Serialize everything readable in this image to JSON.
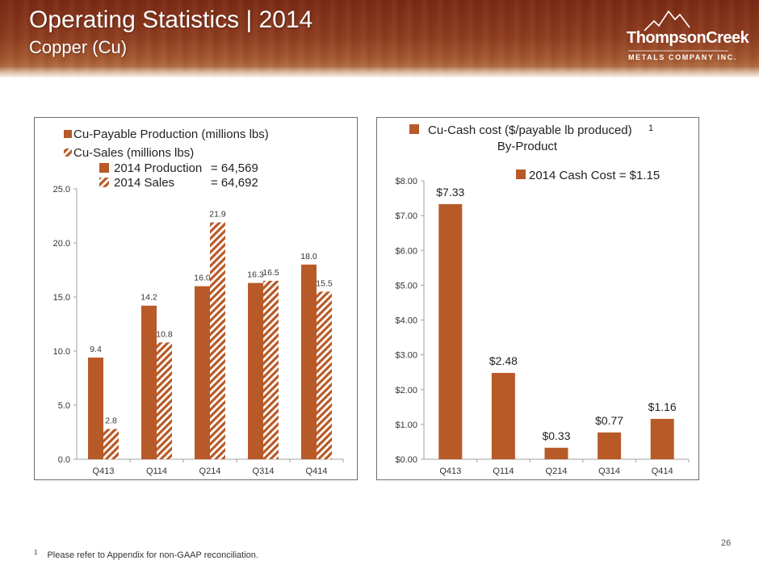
{
  "header": {
    "title": "Operating Statistics | 2014",
    "subtitle": "Copper (Cu)"
  },
  "logo": {
    "name": "ThompsonCreek",
    "tagline": "METALS COMPANY INC."
  },
  "colors": {
    "bar": "#b85a28",
    "axis": "#a0a0a0"
  },
  "chart_data": [
    {
      "type": "bar",
      "categories": [
        "Q413",
        "Q114",
        "Q214",
        "Q314",
        "Q414"
      ],
      "series": [
        {
          "name": "Cu-Payable Production (millions lbs)",
          "values": [
            9.4,
            14.2,
            16.0,
            16.3,
            18.0
          ],
          "labels": [
            "9.4",
            "14.2",
            "16.0",
            "16.3",
            "18.0"
          ],
          "pattern": "solid"
        },
        {
          "name": "Cu-Sales (millions lbs)",
          "values": [
            2.8,
            10.8,
            21.9,
            16.5,
            15.5
          ],
          "labels": [
            "2.8",
            "10.8",
            "21.9",
            "16.5",
            "15.5"
          ],
          "pattern": "hatched"
        }
      ],
      "ylim": [
        0,
        25
      ],
      "yticks": [
        "0.0",
        "5.0",
        "10.0",
        "15.0",
        "20.0",
        "25.0"
      ],
      "annotation": [
        {
          "label": "2014  Production",
          "value": "= 64,569",
          "pattern": "solid"
        },
        {
          "label": "2014  Sales",
          "value": "= 64,692",
          "pattern": "hatched"
        }
      ],
      "legend_position": "top-left",
      "grid": false
    },
    {
      "type": "bar",
      "categories": [
        "Q413",
        "Q114",
        "Q214",
        "Q314",
        "Q414"
      ],
      "series": [
        {
          "name": "Cu-Cash cost ($/payable lb produced)",
          "values": [
            7.33,
            2.48,
            0.33,
            0.77,
            1.16
          ],
          "labels": [
            "$7.33",
            "$2.48",
            "$0.33",
            "$0.77",
            "$1.16"
          ],
          "pattern": "solid"
        }
      ],
      "legend_line2": "By-Product",
      "legend_superscript": "1",
      "ylim": [
        0,
        8
      ],
      "yticks": [
        "$0.00",
        "$1.00",
        "$2.00",
        "$3.00",
        "$4.00",
        "$5.00",
        "$6.00",
        "$7.00",
        "$8.00"
      ],
      "annotation": [
        {
          "label": "2014 Cash Cost = $1.15",
          "pattern": "solid"
        }
      ],
      "legend_position": "top-left",
      "grid": false
    }
  ],
  "footer": {
    "page_number": "26",
    "footnote_marker": "1",
    "footnote_text": "Please refer to Appendix for non-GAAP reconciliation."
  }
}
